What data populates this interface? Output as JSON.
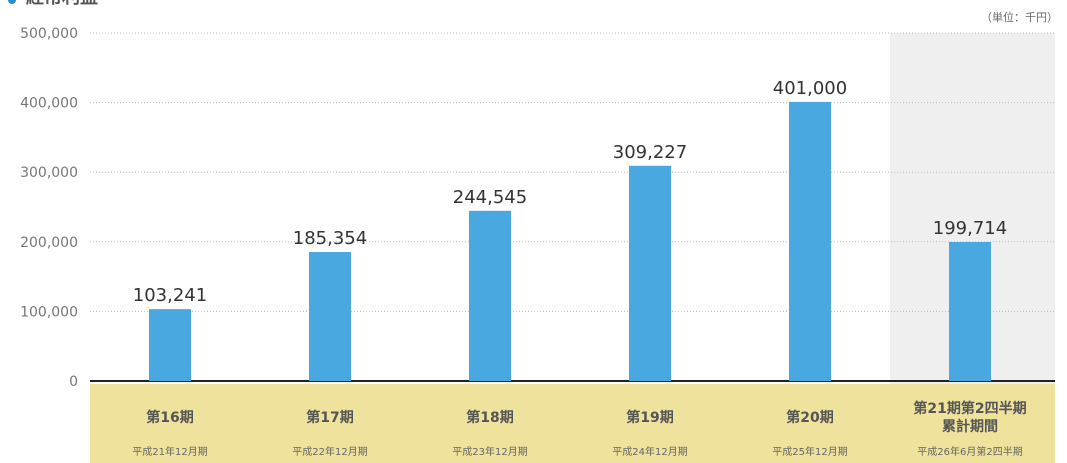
{
  "chart_data": {
    "type": "bar",
    "title": "経常利益",
    "unit_note": "（単位：千円）",
    "ylim": [
      0,
      500000
    ],
    "yticks": [
      "500,000",
      "400,000",
      "300,000",
      "200,000",
      "100,000",
      "0"
    ],
    "categories": [
      {
        "label": "第16期",
        "sub": "平成21年12月期"
      },
      {
        "label": "第17期",
        "sub": "平成22年12月期"
      },
      {
        "label": "第18期",
        "sub": "平成23年12月期"
      },
      {
        "label": "第19期",
        "sub": "平成24年12月期"
      },
      {
        "label": "第20期",
        "sub": "平成25年12月期"
      },
      {
        "label": "第21期第2四半期累計期間",
        "label_lines": [
          "第21期第2四半期",
          "累計期間"
        ],
        "sub": "平成26年6月第2四半期"
      }
    ],
    "values": [
      103241,
      185354,
      244545,
      309227,
      401000,
      199714
    ],
    "value_labels": [
      "103,241",
      "185,354",
      "244,545",
      "309,227",
      "401,000",
      "199,714"
    ],
    "highlight_last_column": true,
    "colors": {
      "bar": "#4aa8e0",
      "category_band": "#efe29c",
      "highlight_background": "#efefef",
      "title_marker": "#2a8fd0",
      "axis": "#222222",
      "grid": "#bbbbbb"
    },
    "grid": true
  }
}
